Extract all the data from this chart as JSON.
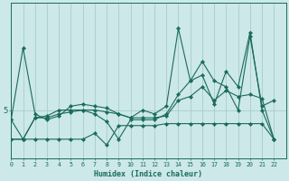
{
  "xlabel": "Humidex (Indice chaleur)",
  "bg_color": "#cce8e8",
  "line_color": "#1a6b5a",
  "grid_color": "#aacccc",
  "xmin": 0,
  "xmax": 23,
  "ylim": [
    2.5,
    10.5
  ],
  "ytick_val": 5.0,
  "ytick_label": "5",
  "series": [
    {
      "x": [
        0,
        1,
        2,
        3,
        4,
        5,
        6,
        7,
        8,
        9,
        10,
        11,
        12,
        13,
        14,
        15,
        16,
        17,
        18,
        19,
        20,
        21,
        22
      ],
      "y": [
        4.5,
        8.2,
        4.8,
        4.5,
        4.7,
        5.2,
        5.3,
        5.2,
        5.1,
        4.8,
        4.6,
        5.0,
        4.8,
        5.2,
        9.2,
        6.5,
        7.5,
        6.5,
        6.2,
        5.0,
        8.8,
        5.2,
        5.5
      ]
    },
    {
      "x": [
        0,
        1,
        2,
        3,
        4,
        5,
        6,
        7,
        8,
        9,
        10,
        11,
        12,
        13,
        14,
        15,
        16,
        17,
        18,
        19,
        20,
        21,
        22
      ],
      "y": [
        4.5,
        3.5,
        4.6,
        4.6,
        4.8,
        4.9,
        5.0,
        5.0,
        4.9,
        4.8,
        4.6,
        4.6,
        4.6,
        4.7,
        5.5,
        5.7,
        6.2,
        5.5,
        6.0,
        5.7,
        5.8,
        5.6,
        3.5
      ]
    },
    {
      "x": [
        0,
        1,
        2,
        3,
        4,
        5,
        6,
        7,
        8,
        9,
        10,
        11,
        12,
        13,
        14,
        15,
        16,
        17,
        18,
        19,
        20,
        21,
        22
      ],
      "y": [
        3.5,
        3.5,
        4.6,
        4.7,
        5.0,
        5.0,
        5.0,
        4.8,
        4.4,
        3.5,
        4.5,
        4.5,
        4.5,
        4.8,
        5.8,
        6.5,
        6.8,
        5.3,
        7.0,
        6.2,
        9.0,
        5.0,
        3.5
      ]
    },
    {
      "x": [
        0,
        1,
        2,
        3,
        4,
        5,
        6,
        7,
        8,
        9,
        10,
        11,
        12,
        13,
        14,
        15,
        16,
        17,
        18,
        19,
        20,
        21,
        22
      ],
      "y": [
        3.5,
        3.5,
        3.5,
        3.5,
        3.5,
        3.5,
        3.5,
        3.8,
        3.2,
        4.2,
        4.2,
        4.2,
        4.2,
        4.3,
        4.3,
        4.3,
        4.3,
        4.3,
        4.3,
        4.3,
        4.3,
        4.3,
        3.5
      ]
    }
  ]
}
